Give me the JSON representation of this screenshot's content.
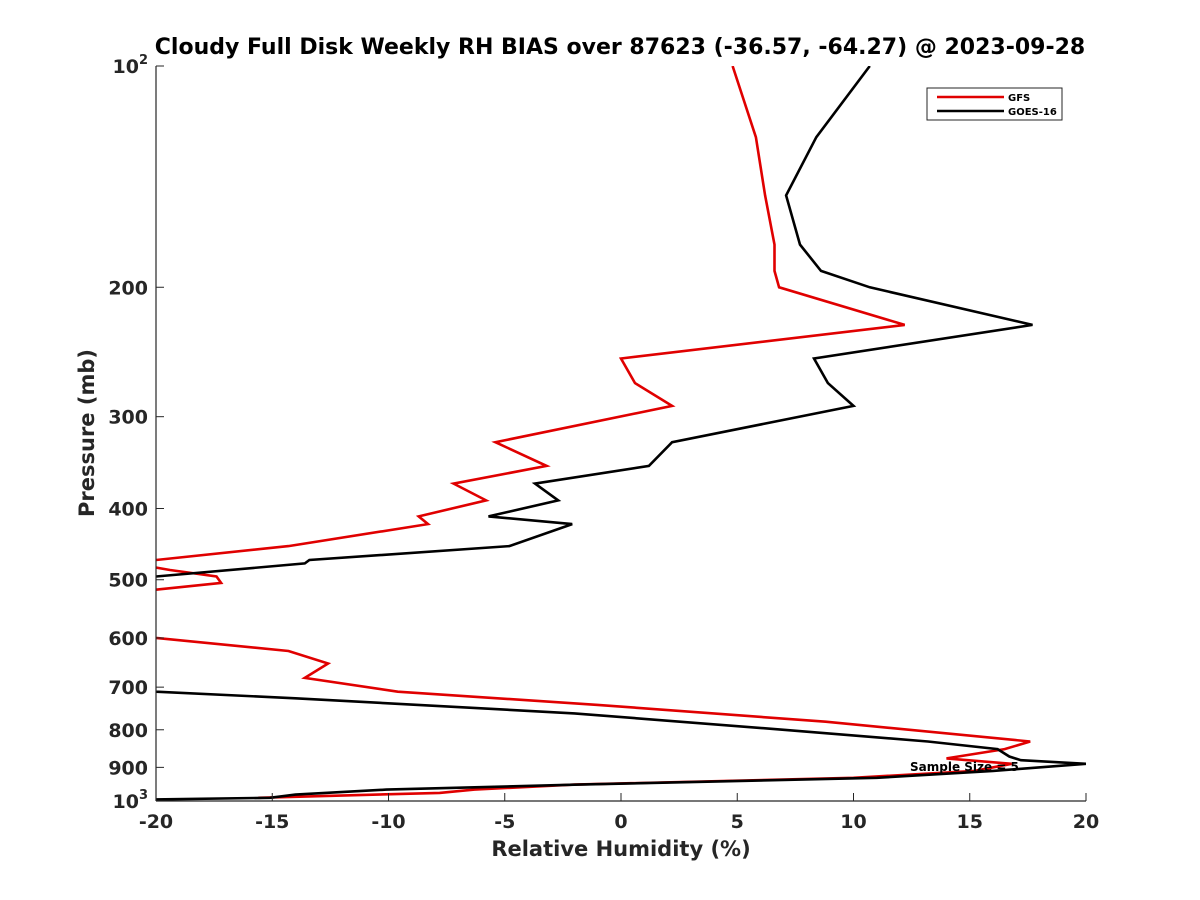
{
  "chart_data": {
    "type": "line",
    "title": "Cloudy Full Disk Weekly RH BIAS over 87623 (-36.57, -64.27) @ 2023-09-28",
    "xlabel": "Relative Humidity (%)",
    "ylabel": "Pressure (mb)",
    "xlim": [
      -20,
      20
    ],
    "ylim": [
      100,
      1000
    ],
    "y_scale": "log",
    "y_reversed": true,
    "grid": false,
    "legend_position": "top-right",
    "x_ticks": [
      -20,
      -15,
      -10,
      -5,
      0,
      5,
      10,
      15,
      20
    ],
    "x_tick_labels": [
      "-20",
      "-15",
      "-10",
      "-5",
      "0",
      "5",
      "10",
      "15",
      "20"
    ],
    "y_ticks": [
      100,
      200,
      300,
      400,
      500,
      600,
      700,
      800,
      900,
      1000
    ],
    "y_tick_labels": [
      "10²",
      "200",
      "300",
      "400",
      "500",
      "600",
      "700",
      "800",
      "900",
      "10³"
    ],
    "annotation": "Sample Size = 5",
    "series": [
      {
        "name": "GFS",
        "color": "#e00000",
        "points": [
          [
            4.8,
            100
          ],
          [
            5.8,
            125
          ],
          [
            6.2,
            150
          ],
          [
            6.6,
            175
          ],
          [
            6.6,
            190
          ],
          [
            6.8,
            200
          ],
          [
            12.2,
            225
          ],
          [
            0.0,
            250
          ],
          [
            0.6,
            270
          ],
          [
            2.2,
            290
          ],
          [
            -5.4,
            325
          ],
          [
            -3.2,
            350
          ],
          [
            -7.2,
            370
          ],
          [
            -5.8,
            390
          ],
          [
            -8.7,
            410
          ],
          [
            -8.3,
            420
          ],
          [
            -14.3,
            450
          ],
          [
            -20.0,
            470
          ],
          [
            -21.0,
            475
          ],
          [
            -19.4,
            485
          ],
          [
            -17.4,
            495
          ],
          [
            -17.2,
            505
          ],
          [
            -19.8,
            515
          ],
          [
            -21.0,
            520
          ],
          [
            -21.0,
            580
          ],
          [
            -20.0,
            600
          ],
          [
            -14.3,
            625
          ],
          [
            -12.6,
            650
          ],
          [
            -13.6,
            680
          ],
          [
            -9.6,
            710
          ],
          [
            -1.0,
            740
          ],
          [
            8.8,
            780
          ],
          [
            17.6,
            830
          ],
          [
            16.5,
            850
          ],
          [
            14.0,
            875
          ],
          [
            16.8,
            890
          ],
          [
            15.2,
            910
          ],
          [
            10.0,
            930
          ],
          [
            -2.0,
            950
          ],
          [
            -6.3,
            965
          ],
          [
            -7.8,
            975
          ],
          [
            -15.6,
            990
          ]
        ]
      },
      {
        "name": "GOES-16",
        "color": "#000000",
        "points": [
          [
            10.7,
            100
          ],
          [
            8.4,
            125
          ],
          [
            7.1,
            150
          ],
          [
            7.7,
            175
          ],
          [
            8.6,
            190
          ],
          [
            10.7,
            200
          ],
          [
            17.7,
            225
          ],
          [
            8.3,
            250
          ],
          [
            8.9,
            270
          ],
          [
            10.0,
            290
          ],
          [
            2.2,
            325
          ],
          [
            1.2,
            350
          ],
          [
            -3.7,
            370
          ],
          [
            -2.7,
            390
          ],
          [
            -5.7,
            410
          ],
          [
            -2.1,
            420
          ],
          [
            -4.8,
            450
          ],
          [
            -13.4,
            470
          ],
          [
            -13.6,
            475
          ],
          [
            -20.0,
            495
          ],
          [
            -21.0,
            500
          ],
          [
            -21.0,
            700
          ],
          [
            -20.0,
            710
          ],
          [
            -14.0,
            725
          ],
          [
            -2.0,
            760
          ],
          [
            7.0,
            800
          ],
          [
            13.2,
            830
          ],
          [
            16.2,
            850
          ],
          [
            16.7,
            870
          ],
          [
            17.2,
            880
          ],
          [
            20.0,
            890
          ],
          [
            16.0,
            910
          ],
          [
            11.0,
            930
          ],
          [
            -1.8,
            950
          ],
          [
            -10.1,
            965
          ],
          [
            -14.0,
            980
          ],
          [
            -15.1,
            990
          ],
          [
            -20.0,
            995
          ],
          [
            -21.0,
            997
          ]
        ]
      }
    ]
  }
}
